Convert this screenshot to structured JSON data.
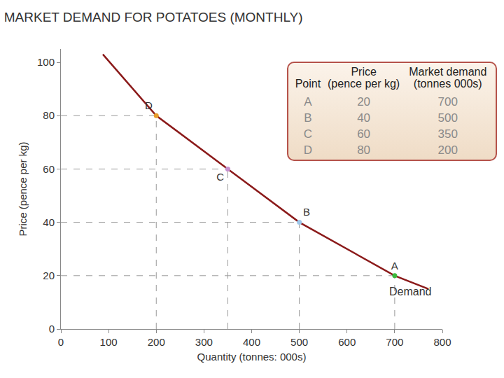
{
  "chart_data": {
    "type": "line",
    "title": "MARKET DEMAND FOR POTATOES (MONTHLY)",
    "x_label": "Quantity (tonnes: 000s)",
    "y_label": "Price (pence per kg)",
    "series": [
      {
        "name": "Demand",
        "color": "#8b1a1a",
        "x": [
          88,
          200,
          350,
          500,
          700,
          771
        ],
        "values": [
          103,
          80,
          60,
          40,
          20,
          15
        ]
      }
    ],
    "points": [
      {
        "label": "A",
        "x": 700,
        "y": 20,
        "color": "#3cb83c"
      },
      {
        "label": "B",
        "x": 500,
        "y": 40,
        "color": "#9ec8ea"
      },
      {
        "label": "C",
        "x": 350,
        "y": 60,
        "color": "#c78fcf"
      },
      {
        "label": "D",
        "x": 200,
        "y": 80,
        "color": "#e89c2c"
      }
    ],
    "xlim": [
      0,
      800
    ],
    "xticks": [
      0,
      100,
      200,
      300,
      400,
      500,
      600,
      700,
      800
    ],
    "ylim": [
      0,
      105
    ],
    "yticks": [
      0,
      20,
      40,
      60,
      80,
      100
    ],
    "grid": false,
    "table": {
      "headers": [
        [
          "Point"
        ],
        [
          "Price",
          "(pence per kg)"
        ],
        [
          "Market demand",
          "(tonnes 000s)"
        ]
      ],
      "rows": [
        [
          "A",
          20,
          700
        ],
        [
          "B",
          40,
          500
        ],
        [
          "C",
          60,
          350
        ],
        [
          "D",
          80,
          200
        ]
      ]
    }
  }
}
